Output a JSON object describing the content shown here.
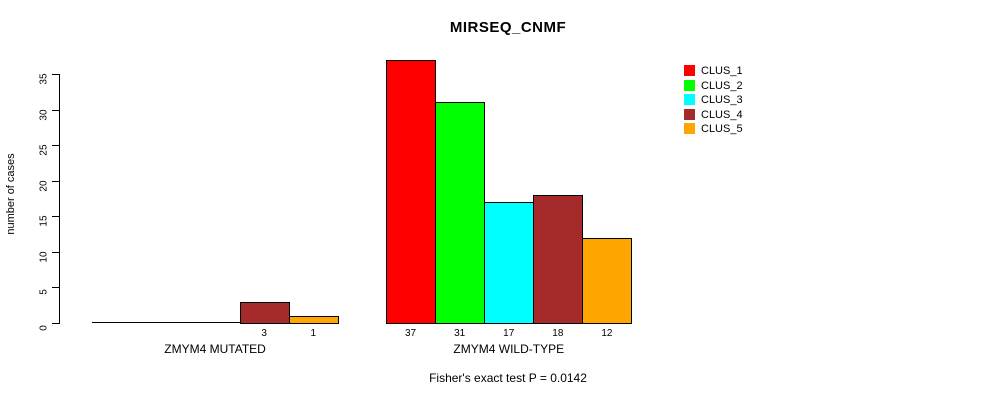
{
  "chart_data": {
    "type": "bar",
    "title": "MIRSEQ_CNMF",
    "ylabel": "number of cases",
    "footnote": "Fisher's exact test P = 0.0142",
    "categories": [
      "ZMYM4 MUTATED",
      "ZMYM4 WILD-TYPE"
    ],
    "series": [
      {
        "name": "CLUS_1",
        "color": "#FF0000",
        "values": [
          0,
          37
        ]
      },
      {
        "name": "CLUS_2",
        "color": "#00FF00",
        "values": [
          0,
          31
        ]
      },
      {
        "name": "CLUS_3",
        "color": "#00FFFF",
        "values": [
          0,
          17
        ]
      },
      {
        "name": "CLUS_4",
        "color": "#A52A2A",
        "values": [
          3,
          18
        ]
      },
      {
        "name": "CLUS_5",
        "color": "#FFA500",
        "values": [
          1,
          12
        ]
      }
    ],
    "bar_value_labels": {
      "show_only_nonzero": true,
      "groups": [
        [
          "",
          "",
          "",
          "3",
          "1"
        ],
        [
          "37",
          "31",
          "17",
          "18",
          "12"
        ]
      ]
    },
    "y_ticks": [
      0,
      5,
      10,
      15,
      20,
      25,
      30,
      35
    ],
    "ylim": [
      0,
      37
    ],
    "grid": false,
    "legend_position": "right",
    "legend_entries": [
      "CLUS_1",
      "CLUS_2",
      "CLUS_3",
      "CLUS_4",
      "CLUS_5"
    ],
    "bar_border_color": "#000000",
    "axis_color": "#000000",
    "text_color": "#000000"
  }
}
